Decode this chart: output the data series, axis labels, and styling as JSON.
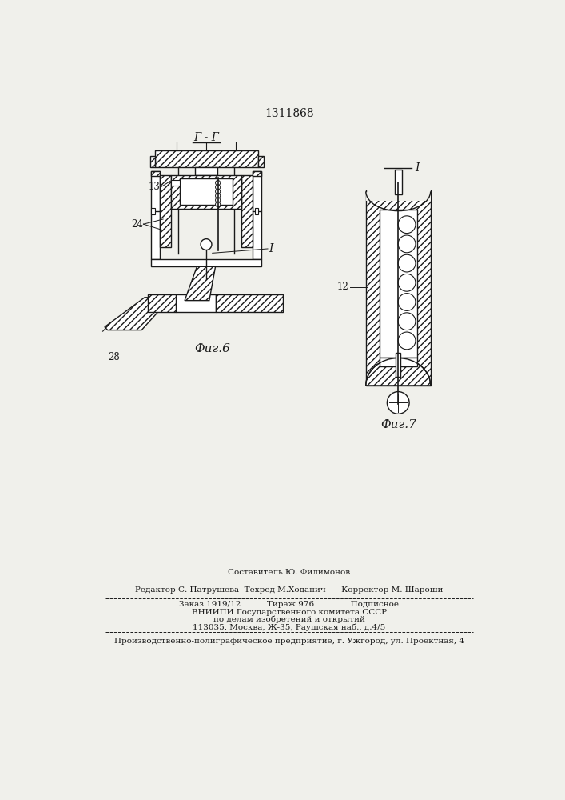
{
  "patent_number": "1311868",
  "bg_color": "#f0f0eb",
  "line_color": "#1a1a1a",
  "fig6_label": "Фиг.6",
  "fig7_label": "Фиг.7",
  "section_label": "Г - Г",
  "label_13": "13",
  "label_24": "24",
  "label_28": "28",
  "label_I_fig6": "I",
  "label_I_fig7": "I",
  "label_12": "12",
  "footer_line1": "Составитель Ю. Филимонов",
  "footer_line2": "Редактор С. Патрушева  Техред М.Ходанич      Корректор М. Шароши",
  "footer_line3": "Заказ 1919/12          Тираж 976              Подписное",
  "footer_line4": "ВНИИПИ Государственного комитета СССР",
  "footer_line5": "по делам изобретений и открытий",
  "footer_line6": "113035, Москва, Ж-35, Раушская наб., д.4/5",
  "footer_line7": "Производственно-полиграфическое предприятие, г. Ужгород, ул. Проектная, 4"
}
